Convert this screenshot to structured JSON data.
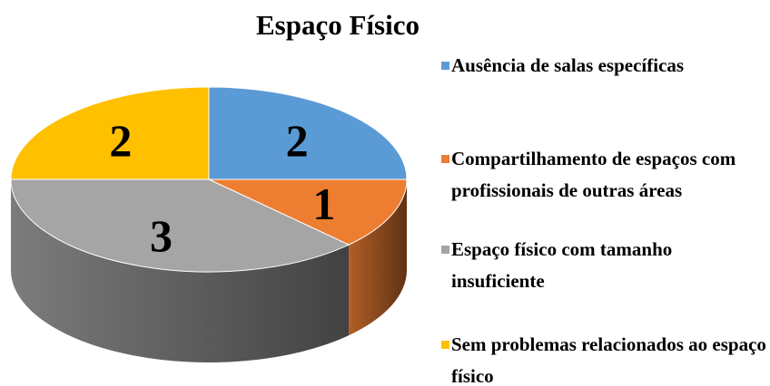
{
  "chart_data": {
    "type": "pie",
    "title": "Espaço Físico",
    "categories": [
      "Ausência de salas específicas",
      "Compartilhamento de espaços com profissionais de outras áreas",
      "Espaço físico com tamanho insuficiente",
      "Sem problemas relacionados ao espaço físico"
    ],
    "values": [
      2,
      1,
      3,
      2
    ],
    "colors": [
      "#5b9bd5",
      "#ed7d31",
      "#a5a5a5",
      "#ffc000"
    ]
  }
}
